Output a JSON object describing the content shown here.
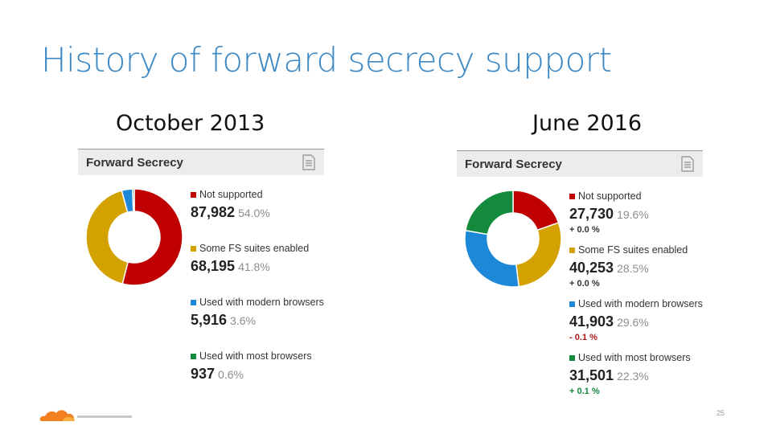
{
  "slide": {
    "title": "History of forward secrecy support",
    "page_number": "25"
  },
  "panels": [
    {
      "period": "October 2013",
      "header": "Forward Secrecy",
      "items": [
        {
          "label": "Not supported",
          "count": "87,982",
          "pct": "54.0%"
        },
        {
          "label": "Some FS suites enabled",
          "count": "68,195",
          "pct": "41.8%"
        },
        {
          "label": "Used with modern browsers",
          "count": "5,916",
          "pct": "3.6%"
        },
        {
          "label": "Used with most browsers",
          "count": "937",
          "pct": "0.6%"
        }
      ]
    },
    {
      "period": "June 2016",
      "header": "Forward Secrecy",
      "items": [
        {
          "label": "Not supported",
          "count": "27,730",
          "pct": "19.6%",
          "change": "+ 0.0 %"
        },
        {
          "label": "Some FS suites enabled",
          "count": "40,253",
          "pct": "28.5%",
          "change": "+ 0.0 %"
        },
        {
          "label": "Used with modern browsers",
          "count": "41,903",
          "pct": "29.6%",
          "change": "- 0.1 %"
        },
        {
          "label": "Used with most browsers",
          "count": "31,501",
          "pct": "22.3%",
          "change": "+ 0.1 %"
        }
      ]
    }
  ],
  "colors": {
    "not_supported": "#c00000",
    "some_fs": "#d4a200",
    "modern": "#1e88d8",
    "most": "#138a3c",
    "change_neutral": "#333333",
    "change_negative": "#b01818",
    "change_positive": "#138a3c",
    "title": "#3b88c4"
  },
  "chart_data": [
    {
      "type": "pie",
      "categories": [
        "Not supported",
        "Some FS suites enabled",
        "Used with modern browsers",
        "Used with most browsers"
      ],
      "values": [
        87982,
        68195,
        5916,
        937
      ],
      "percent": [
        54.0,
        41.8,
        3.6,
        0.6
      ]
    },
    {
      "type": "pie",
      "categories": [
        "Not supported",
        "Some FS suites enabled",
        "Used with modern browsers",
        "Used with most browsers"
      ],
      "values": [
        27730,
        40253,
        41903,
        31501
      ],
      "percent": [
        19.6,
        28.5,
        29.6,
        22.3
      ]
    }
  ]
}
